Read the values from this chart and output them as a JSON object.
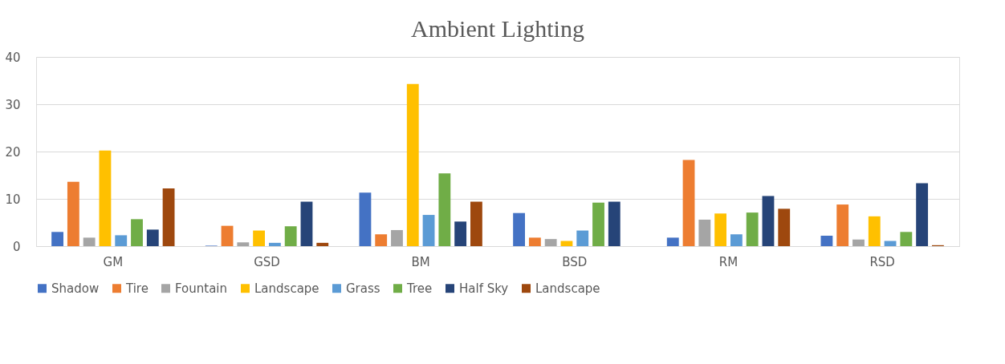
{
  "chart_data": {
    "type": "bar",
    "title": "Ambient Lighting",
    "categories": [
      "GM",
      "GSD",
      "BM",
      "BSD",
      "RM",
      "RSD"
    ],
    "series": [
      {
        "name": "Shadow",
        "color": "#4472c4",
        "values": [
          3.0,
          0.1,
          11.3,
          7.0,
          1.8,
          2.2
        ]
      },
      {
        "name": "Tire",
        "color": "#ed7d31",
        "values": [
          13.6,
          4.3,
          2.5,
          1.8,
          18.2,
          8.8
        ]
      },
      {
        "name": "Fountain",
        "color": "#a5a5a5",
        "values": [
          1.8,
          0.8,
          3.4,
          1.5,
          5.6,
          1.4
        ]
      },
      {
        "name": "Landscape",
        "color": "#ffc000",
        "values": [
          20.2,
          3.3,
          34.3,
          1.1,
          6.9,
          6.3
        ]
      },
      {
        "name": "Grass",
        "color": "#5b9bd5",
        "values": [
          2.3,
          0.7,
          6.6,
          3.3,
          2.5,
          1.1
        ]
      },
      {
        "name": "Tree",
        "color": "#70ad47",
        "values": [
          5.7,
          4.2,
          15.4,
          9.2,
          7.1,
          3.0
        ]
      },
      {
        "name": "Half Sky",
        "color": "#264478",
        "values": [
          3.5,
          9.4,
          5.2,
          9.4,
          10.6,
          13.3
        ]
      },
      {
        "name": "Landscape",
        "color": "#9e480e",
        "values": [
          12.2,
          0.7,
          9.4,
          null,
          7.9,
          0.2
        ]
      }
    ],
    "ylim": [
      0,
      40
    ],
    "yticks": [
      0,
      10,
      20,
      30,
      40
    ],
    "grid": "y",
    "legend": "bottom"
  }
}
